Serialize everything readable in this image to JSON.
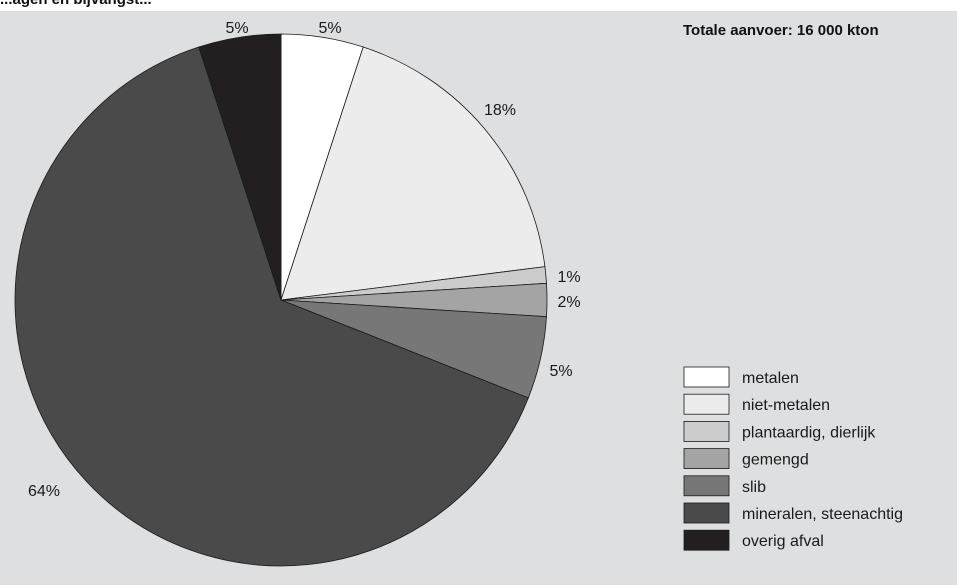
{
  "chart_data": {
    "type": "pie",
    "title_partial": "...agen en bijvangst...",
    "total_label": "Totale aanvoer: 16 000 kton",
    "categories": [
      "metalen",
      "niet-metalen",
      "plantaardig, dierlijk",
      "gemengd",
      "slib",
      "mineralen, steenachtig",
      "overig afval"
    ],
    "values": [
      5,
      18,
      1,
      2,
      5,
      64,
      5
    ],
    "value_labels": [
      "5%",
      "18%",
      "1%",
      "2%",
      "5%",
      "64%",
      "5%"
    ],
    "unit": "%",
    "legend_position": "bottom-right",
    "colors": [
      "#ffffff",
      "#ececec",
      "#cccccc",
      "#a4a4a4",
      "#777777",
      "#4a4a4b",
      "#231f20"
    ],
    "background": "#dedfe0"
  }
}
